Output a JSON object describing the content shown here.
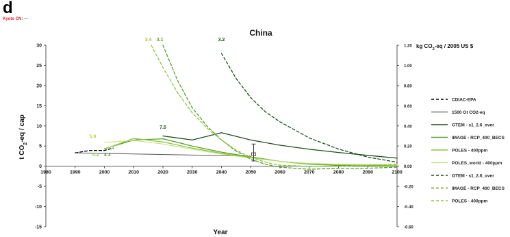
{
  "panel_letter": "d",
  "kyoto_note": "Kyoto CN: ---",
  "chart_data": {
    "type": "line",
    "title": "China",
    "xlabel": "Year",
    "ylabel": "t CO2-eq / cap",
    "ylabel_parts": [
      "t CO",
      "2",
      "-eq / cap"
    ],
    "y2label": "kg CO2-eq / 2005 US $",
    "y2label_parts": [
      "kg CO",
      "2",
      "-eq / 2005 US $"
    ],
    "xlim": [
      1980,
      2100
    ],
    "ylim": [
      -15,
      30
    ],
    "y2lim": [
      -0.6,
      1.2
    ],
    "xticks": [
      "1980",
      "1990",
      "2000",
      "2010",
      "2020",
      "2030",
      "2040",
      "2050",
      "2060",
      "2070",
      "2080",
      "2090",
      "2100"
    ],
    "yticks": [
      "30",
      "25",
      "20",
      "15",
      "10",
      "5",
      "0",
      "-5",
      "-10",
      "-15"
    ],
    "y2ticks": [
      "1.20",
      "1.00",
      "0.80",
      "0.60",
      "0.40",
      "0.20",
      "0.00",
      "-0.20",
      "-0.40",
      "-0.60"
    ],
    "grid": false,
    "legend_position": "right",
    "series": [
      {
        "name": "CDIAC-EPA",
        "axis": "left",
        "color": "#000000",
        "dash": "4,3",
        "width": 1.3,
        "x": [
          1990,
          1995,
          2000,
          2003
        ],
        "y": [
          3.3,
          3.9,
          3.9,
          4.5
        ]
      },
      {
        "name": "1500 Gt CO2-eq",
        "axis": "left",
        "color": "#555555",
        "dash": "",
        "width": 1.0,
        "x": [
          1990,
          2050
        ],
        "y": [
          3.3,
          2.5
        ]
      },
      {
        "name": "GTEM - s1_2.6_over",
        "axis": "left",
        "color": "#1a4d1a",
        "dash": "",
        "width": 1.3,
        "x": [
          2020,
          2030,
          2040,
          2050,
          2060,
          2070,
          2080,
          2090,
          2100
        ],
        "y": [
          7.5,
          6.5,
          8.3,
          6.5,
          5.2,
          4.2,
          3.4,
          2.7,
          2.0
        ]
      },
      {
        "name": "IMAGE - RCP_400_BECS",
        "axis": "left",
        "color": "#5a9e2a",
        "dash": "",
        "width": 1.3,
        "x": [
          2000,
          2010,
          2020,
          2030,
          2040,
          2050,
          2060,
          2070,
          2080,
          2090,
          2100
        ],
        "y": [
          4.3,
          6.5,
          6.8,
          5.0,
          3.5,
          2.3,
          1.2,
          0.5,
          0.2,
          0.1,
          0.1
        ]
      },
      {
        "name": "POLES - 400ppm",
        "axis": "left",
        "color": "#8dc63f",
        "dash": "",
        "width": 1.3,
        "x": [
          2000,
          2010,
          2020,
          2030,
          2040,
          2050,
          2060,
          2070,
          2080,
          2090,
          2100
        ],
        "y": [
          4.2,
          6.9,
          6.0,
          4.5,
          3.2,
          2.2,
          1.2,
          0.6,
          0.4,
          0.3,
          0.2
        ]
      },
      {
        "name": "POLES_world - 400ppm",
        "axis": "left",
        "color": "#c2e07a",
        "dash": "",
        "width": 1.0,
        "x": [
          2000,
          2010,
          2020,
          2030,
          2040,
          2050,
          2060,
          2070,
          2080,
          2090,
          2100
        ],
        "y": [
          5.9,
          6.4,
          5.5,
          4.2,
          3.0,
          2.0,
          1.2,
          0.7,
          0.5,
          0.4,
          0.3
        ]
      },
      {
        "name": "GTEM - s1_2.6_over",
        "axis": "right",
        "color": "#1a4d1a",
        "dash": "4,3",
        "width": 1.3,
        "x": [
          2040,
          2045,
          2050,
          2055,
          2060,
          2070,
          2080,
          2090,
          2100
        ],
        "y": [
          1.12,
          0.87,
          0.68,
          0.54,
          0.44,
          0.28,
          0.17,
          0.09,
          0.04
        ]
      },
      {
        "name": "IMAGE - RCP_400_BECS",
        "axis": "right",
        "color": "#5a9e2a",
        "dash": "4,3",
        "width": 1.3,
        "x": [
          2020,
          2025,
          2030,
          2035,
          2040,
          2045,
          2050,
          2055,
          2060,
          2070,
          2080,
          2090,
          2100
        ],
        "y": [
          1.2,
          0.85,
          0.58,
          0.4,
          0.26,
          0.15,
          0.07,
          0.02,
          -0.01,
          -0.03,
          -0.02,
          -0.02,
          -0.01
        ]
      },
      {
        "name": "POLES - 400ppm",
        "axis": "right",
        "color": "#8dc63f",
        "dash": "4,3",
        "width": 1.3,
        "x": [
          2016,
          2020,
          2025,
          2030,
          2035,
          2040,
          2045,
          2050,
          2055,
          2060,
          2070,
          2080,
          2090,
          2100
        ],
        "y": [
          1.2,
          0.98,
          0.73,
          0.53,
          0.38,
          0.26,
          0.16,
          0.09,
          0.04,
          0.01,
          0.0,
          0.0,
          0.01,
          0.02
        ]
      }
    ],
    "annotations": [
      {
        "text": "3.4",
        "x": 2015,
        "axis": "top",
        "color": "#9fc43a"
      },
      {
        "text": "3.1",
        "x": 2019,
        "axis": "top",
        "color": "#5a9e2a"
      },
      {
        "text": "3.2",
        "x": 2040,
        "axis": "top",
        "color": "#1a4d1a"
      },
      {
        "text": "7.5",
        "x": 2020,
        "y": 9.3,
        "color": "#1a4d1a"
      },
      {
        "text": "5.9",
        "x": 1996,
        "y": 7.0,
        "color": "#b5d642"
      },
      {
        "text": "4.2",
        "x": 1997,
        "y": 2.5,
        "color": "#8dc63f"
      },
      {
        "text": "4.3",
        "x": 2001,
        "y": 2.5,
        "color": "#5a9e2a"
      }
    ],
    "error_bar": {
      "x": 2051,
      "low": 1.3,
      "high": 5.5,
      "center": 3.0
    }
  }
}
